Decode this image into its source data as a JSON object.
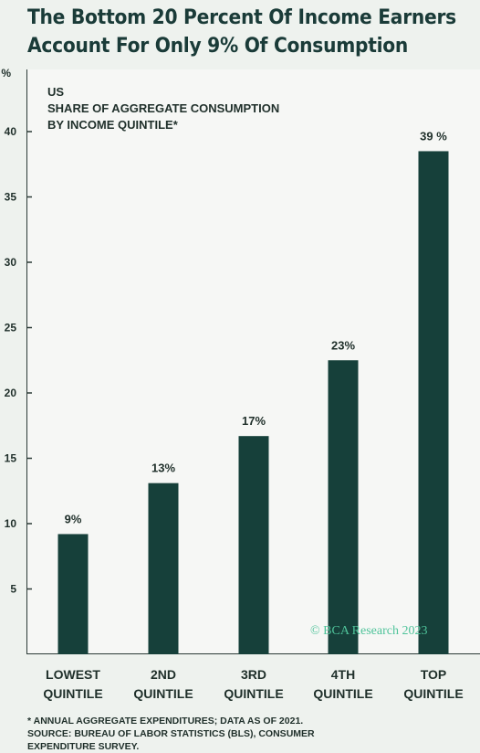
{
  "title_lines": [
    "The Bottom 20 Percent Of Income Earners",
    "Account For Only 9% Of Consumption"
  ],
  "subtitle_lines": [
    "US",
    "SHARE OF AGGREGATE CONSUMPTION",
    "BY INCOME QUINTILE*"
  ],
  "watermark": "© BCA Research 2023",
  "footnote_lines": [
    "* ANNUAL AGGREGATE EXPENDITURES; DATA AS OF 2021.",
    "SOURCE: BUREAU OF LABOR STATISTICS (BLS), CONSUMER",
    "EXPENDITURE SURVEY."
  ],
  "chart_data": {
    "type": "bar",
    "categories": [
      [
        "LOWEST",
        "QUINTILE"
      ],
      [
        "2ND",
        "QUINTILE"
      ],
      [
        "3RD",
        "QUINTILE"
      ],
      [
        "4TH",
        "QUINTILE"
      ],
      [
        "TOP",
        "QUINTILE"
      ]
    ],
    "values": [
      9.2,
      13.1,
      16.7,
      22.5,
      38.5
    ],
    "data_labels": [
      "9%",
      "13%",
      "17%",
      "23%",
      "39 %"
    ],
    "yticks": [
      5,
      10,
      15,
      20,
      25,
      30,
      35,
      40
    ],
    "ytick_labels": [
      "5",
      "10",
      "15",
      "20",
      "25",
      "30",
      "35",
      "40"
    ],
    "ytop_label": "%",
    "ylim": [
      0,
      45
    ],
    "bar_color": "#16403a",
    "watermark_color": "#4fc39a",
    "grid": false
  }
}
